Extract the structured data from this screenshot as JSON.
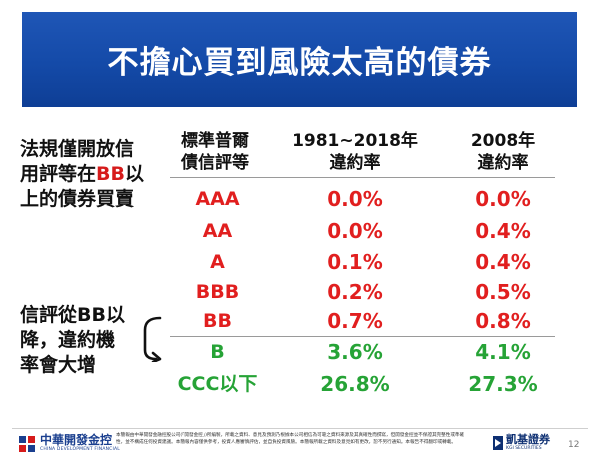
{
  "title": "不擔心買到風險太高的債券",
  "notes": {
    "top": [
      "法規僅開放信",
      "用評等在",
      "BB",
      "以",
      "上的債券買賣"
    ],
    "bottom": [
      "信評從BB以",
      "降，違約機",
      "率會大增"
    ]
  },
  "table": {
    "headers": {
      "rating": [
        "標準普爾",
        "債信評等"
      ],
      "rate_1981": [
        "1981~2018年",
        "違約率"
      ],
      "rate_2008": [
        "2008年",
        "違約率"
      ]
    },
    "rows": [
      {
        "grade": "AAA",
        "v1": "0.0%",
        "v2": "0.0%",
        "color": "#e11f1f"
      },
      {
        "grade": "AA",
        "v1": "0.0%",
        "v2": "0.4%",
        "color": "#e11f1f"
      },
      {
        "grade": "A",
        "v1": "0.1%",
        "v2": "0.4%",
        "color": "#e11f1f"
      },
      {
        "grade": "BBB",
        "v1": "0.2%",
        "v2": "0.5%",
        "color": "#e11f1f"
      },
      {
        "grade": "BB",
        "v1": "0.7%",
        "v2": "0.8%",
        "color": "#e11f1f"
      },
      {
        "grade": "B",
        "v1": "3.6%",
        "v2": "4.1%",
        "color": "#26a336"
      },
      {
        "grade": "CCC以下",
        "v1": "26.8%",
        "v2": "27.3%",
        "color": "#26a336"
      }
    ]
  },
  "footer": {
    "left_logo_zh": "中華開發金控",
    "left_logo_en": "CHINA DEVELOPMENT FINANCIAL",
    "disclaimer": "本簡報由中華開發金融控股公司(「開發金控」)所編製，所載之資料、意見及預測乃根據本公司相信為可靠之資料來源及其真確性而撰寫，但開發金控並不保證其完整性或準確性，並不構成任何投資建議。本簡報內容僅供參考，投資人應審慎評估，並自負投資風險。本簡報所載之資料及意見如有更改，恕不另行通知。本報告不得翻印或轉載。",
    "right_logo_zh": "凱基證券",
    "right_logo_en": "KGI SECURITIES",
    "page_number": "12"
  },
  "icons": {
    "left_logo": "cdf-logo-icon",
    "right_logo": "kgi-logo-icon",
    "brace": "left-bracket-arrow-icon"
  }
}
